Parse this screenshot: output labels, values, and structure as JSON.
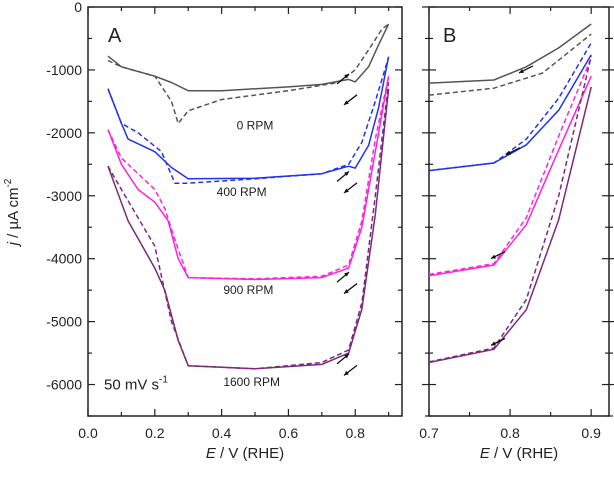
{
  "chart_data": [
    {
      "type": "line",
      "panel_label": "A",
      "xlabel_italic": "E",
      "xlabel_rest": " / V (RHE)",
      "ylabel_italic": "j",
      "ylabel_rest": " / µA cm",
      "ylabel_sup": "-2",
      "xlim": [
        0.0,
        0.94
      ],
      "ylim": [
        -6500,
        0
      ],
      "xticks": [
        0.0,
        0.2,
        0.4,
        0.6,
        0.8
      ],
      "xtick_labels": [
        "0.0",
        "0.2",
        "0.4",
        "0.6",
        "0.8"
      ],
      "yticks": [
        0,
        -1000,
        -2000,
        -3000,
        -4000,
        -5000,
        -6000
      ],
      "ytick_labels": [
        "0",
        "-1000",
        "-2000",
        "-3000",
        "-4000",
        "-5000",
        "-6000"
      ],
      "annotations": [
        {
          "text": "0 RPM",
          "x": 0.5,
          "y": -1950
        },
        {
          "text": "400 RPM",
          "x": 0.46,
          "y": -3000
        },
        {
          "text": "900 RPM",
          "x": 0.48,
          "y": -4560
        },
        {
          "text": "1600 RPM",
          "x": 0.49,
          "y": -6020
        }
      ],
      "scan_rate_label": "50 mV s",
      "scan_rate_sup": "-1",
      "series": [
        {
          "name": "0 RPM anodic",
          "color": "#555555",
          "style": "solid",
          "x": [
            0.06,
            0.1,
            0.2,
            0.25,
            0.3,
            0.4,
            0.6,
            0.7,
            0.78,
            0.8,
            0.84,
            0.87,
            0.9
          ],
          "y": [
            -780,
            -950,
            -1100,
            -1200,
            -1330,
            -1330,
            -1270,
            -1230,
            -1150,
            -1190,
            -950,
            -600,
            -270
          ]
        },
        {
          "name": "0 RPM cathodic",
          "color": "#555555",
          "style": "dashed",
          "x": [
            0.06,
            0.1,
            0.2,
            0.25,
            0.27,
            0.3,
            0.4,
            0.6,
            0.75,
            0.8,
            0.85,
            0.88,
            0.9
          ],
          "y": [
            -850,
            -950,
            -1100,
            -1500,
            -1850,
            -1650,
            -1470,
            -1330,
            -1200,
            -1000,
            -600,
            -350,
            -270
          ]
        },
        {
          "name": "400 RPM anodic",
          "color": "#2233ee",
          "style": "solid",
          "x": [
            0.06,
            0.1,
            0.12,
            0.2,
            0.25,
            0.3,
            0.5,
            0.7,
            0.78,
            0.8,
            0.84,
            0.87,
            0.9
          ],
          "y": [
            -1300,
            -1850,
            -2100,
            -2300,
            -2550,
            -2730,
            -2720,
            -2650,
            -2530,
            -2560,
            -2200,
            -1600,
            -790
          ]
        },
        {
          "name": "400 RPM cathodic",
          "color": "#2233ee",
          "style": "dashed",
          "x": [
            0.06,
            0.1,
            0.15,
            0.22,
            0.26,
            0.3,
            0.5,
            0.7,
            0.78,
            0.82,
            0.86,
            0.9
          ],
          "y": [
            -1300,
            -1850,
            -2000,
            -2300,
            -2800,
            -2800,
            -2730,
            -2650,
            -2500,
            -2150,
            -1500,
            -800
          ]
        },
        {
          "name": "900 RPM anodic",
          "color": "#ff22dd",
          "style": "solid",
          "x": [
            0.06,
            0.1,
            0.15,
            0.2,
            0.24,
            0.27,
            0.3,
            0.5,
            0.7,
            0.78,
            0.82,
            0.86,
            0.9
          ],
          "y": [
            -1950,
            -2500,
            -2900,
            -3100,
            -3400,
            -4000,
            -4300,
            -4330,
            -4300,
            -4150,
            -3500,
            -2300,
            -1100
          ]
        },
        {
          "name": "900 RPM cathodic",
          "color": "#ff22dd",
          "style": "dashed",
          "x": [
            0.06,
            0.1,
            0.2,
            0.23,
            0.26,
            0.3,
            0.5,
            0.7,
            0.78,
            0.82,
            0.86,
            0.9
          ],
          "y": [
            -1950,
            -2400,
            -2900,
            -3200,
            -3700,
            -4300,
            -4320,
            -4280,
            -4100,
            -3400,
            -2100,
            -1100
          ]
        },
        {
          "name": "1600 RPM anodic",
          "color": "#7a2a7a",
          "style": "solid",
          "x": [
            0.06,
            0.12,
            0.2,
            0.23,
            0.27,
            0.3,
            0.5,
            0.7,
            0.78,
            0.82,
            0.86,
            0.9
          ],
          "y": [
            -2530,
            -3400,
            -4150,
            -4500,
            -5300,
            -5700,
            -5750,
            -5680,
            -5500,
            -4800,
            -3300,
            -1300
          ]
        },
        {
          "name": "1600 RPM cathodic",
          "color": "#7a2a7a",
          "style": "dashed",
          "x": [
            0.06,
            0.1,
            0.2,
            0.25,
            0.3,
            0.5,
            0.7,
            0.78,
            0.82,
            0.86,
            0.9
          ],
          "y": [
            -2530,
            -2900,
            -3800,
            -5000,
            -5700,
            -5750,
            -5650,
            -5450,
            -4700,
            -3000,
            -1200
          ]
        }
      ]
    },
    {
      "type": "line",
      "panel_label": "B",
      "xlabel_italic": "E",
      "xlabel_rest": " / V (RHE)",
      "xlim": [
        0.7,
        0.922
      ],
      "ylim": [
        -6500,
        0
      ],
      "xticks": [
        0.7,
        0.8,
        0.9
      ],
      "xtick_labels": [
        "0.7",
        "0.8",
        "0.9"
      ],
      "series": [
        {
          "name": "0 RPM anodic",
          "color": "#555555",
          "style": "solid",
          "x": [
            0.7,
            0.78,
            0.82,
            0.86,
            0.9
          ],
          "y": [
            -1210,
            -1160,
            -950,
            -650,
            -270
          ]
        },
        {
          "name": "0 RPM cathodic",
          "color": "#555555",
          "style": "dashed",
          "x": [
            0.7,
            0.78,
            0.84,
            0.9
          ],
          "y": [
            -1400,
            -1290,
            -1050,
            -430
          ]
        },
        {
          "name": "400 RPM anodic",
          "color": "#2233ee",
          "style": "solid",
          "x": [
            0.7,
            0.78,
            0.82,
            0.86,
            0.9
          ],
          "y": [
            -2600,
            -2480,
            -2190,
            -1640,
            -760
          ]
        },
        {
          "name": "400 RPM cathodic",
          "color": "#2233ee",
          "style": "dashed",
          "x": [
            0.7,
            0.78,
            0.82,
            0.86,
            0.9
          ],
          "y": [
            -2600,
            -2480,
            -2100,
            -1450,
            -570
          ]
        },
        {
          "name": "900 RPM anodic",
          "color": "#ff22dd",
          "style": "solid",
          "x": [
            0.7,
            0.78,
            0.82,
            0.86,
            0.9
          ],
          "y": [
            -4270,
            -4100,
            -3460,
            -2270,
            -1100
          ]
        },
        {
          "name": "900 RPM cathodic",
          "color": "#ff22dd",
          "style": "dashed",
          "x": [
            0.7,
            0.78,
            0.82,
            0.86,
            0.9
          ],
          "y": [
            -4250,
            -4080,
            -3350,
            -2050,
            -810
          ]
        },
        {
          "name": "1600 RPM anodic",
          "color": "#7a2a7a",
          "style": "solid",
          "x": [
            0.7,
            0.78,
            0.82,
            0.86,
            0.9
          ],
          "y": [
            -5650,
            -5440,
            -4810,
            -3380,
            -1270
          ]
        },
        {
          "name": "1600 RPM cathodic",
          "color": "#7a2a7a",
          "style": "dashed",
          "x": [
            0.7,
            0.78,
            0.82,
            0.86,
            0.9
          ],
          "y": [
            -5640,
            -5420,
            -4650,
            -3000,
            -780
          ]
        }
      ]
    }
  ]
}
